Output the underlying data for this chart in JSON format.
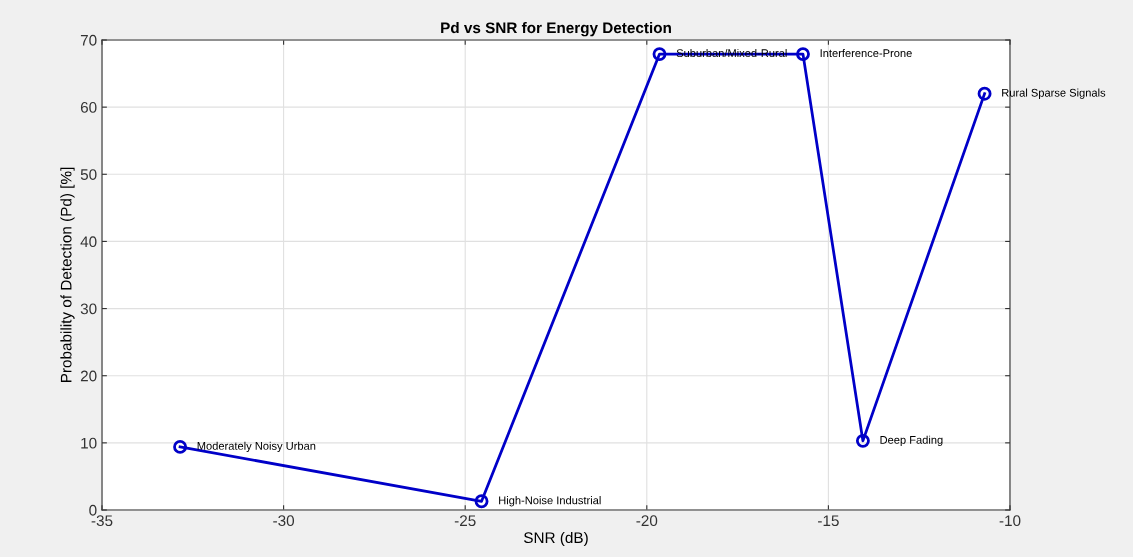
{
  "chart_data": {
    "type": "line",
    "title": "Pd vs SNR for Energy Detection",
    "xlabel": "SNR (dB)",
    "ylabel": "Probability of Detection (Pd) [%]",
    "x": [
      -32.85,
      -24.55,
      -19.65,
      -15.7,
      -14.05,
      -10.7
    ],
    "series": [
      {
        "color": "#0000c8",
        "values": [
          9.4,
          1.3,
          67.9,
          67.9,
          10.3,
          62.0
        ]
      }
    ],
    "xlim": [
      -35,
      -10
    ],
    "xticks": [
      -35,
      -30,
      -25,
      -20,
      -15,
      -10
    ],
    "ylim": [
      0,
      70
    ],
    "yticks": [
      0,
      10,
      20,
      30,
      40,
      50,
      60,
      70
    ],
    "grid": true,
    "marker": "circle",
    "line_style": "solid",
    "annotations": [
      {
        "text": "Moderately Noisy Urban",
        "x": -32.85,
        "y": 9.4
      },
      {
        "text": "High-Noise Industrial",
        "x": -24.55,
        "y": 1.3
      },
      {
        "text": "Suburban/Mixed-Rural",
        "x": -19.65,
        "y": 67.9
      },
      {
        "text": "Interference-Prone",
        "x": -15.7,
        "y": 67.9
      },
      {
        "text": "Deep Fading",
        "x": -14.05,
        "y": 10.3
      },
      {
        "text": "Rural Sparse Signals",
        "x": -10.7,
        "y": 62.0
      }
    ]
  }
}
